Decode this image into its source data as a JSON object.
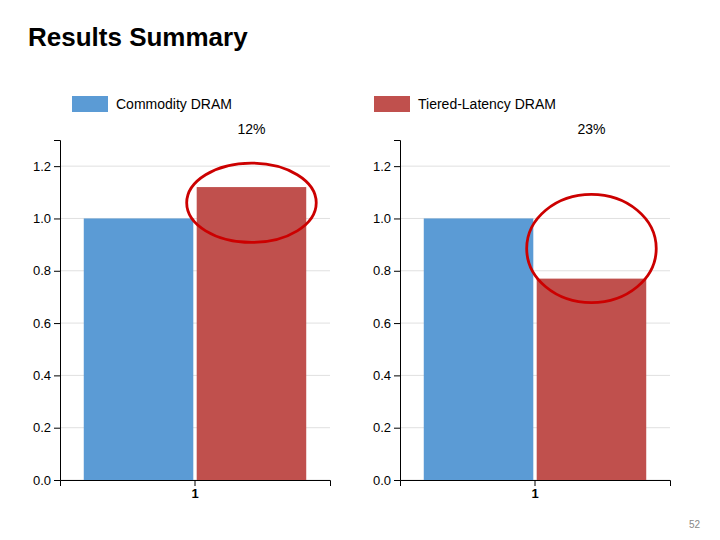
{
  "chart_data": [
    {
      "type": "bar",
      "title": "Results Summary",
      "categories": [
        "1"
      ],
      "series": [
        {
          "name": "Commodity DRAM",
          "color": "#5B9BD5",
          "values": [
            1.0
          ]
        },
        {
          "name": "Tiered-Latency DRAM",
          "color": "#C0504D",
          "values": [
            1.12
          ]
        }
      ],
      "annotations": [
        "12%"
      ],
      "ylim": [
        0.0,
        1.3
      ],
      "yticks": [
        {
          "value": 0.0,
          "label": "0.0"
        },
        0.2,
        0.4,
        0.6,
        0.8,
        {
          "value": 1.0,
          "label": "1.0"
        },
        1.2
      ],
      "grid": true
    },
    {
      "type": "bar",
      "categories": [
        "1"
      ],
      "series": [
        {
          "color": "#5B9BD5",
          "values": [
            1.0
          ]
        },
        {
          "color": "#C0504D",
          "values": [
            0.77
          ]
        }
      ],
      "annotations": [
        "23%",
        "52"
      ],
      "ylim": [
        0.0,
        1.3
      ],
      "yticks": [
        {
          "value": 0.0,
          "label": "0.0"
        },
        0.2,
        0.4,
        0.6,
        0.8,
        {
          "value": 1.0,
          "label": "1.0"
        },
        1.2
      ],
      "grid": true
    }
  ]
}
